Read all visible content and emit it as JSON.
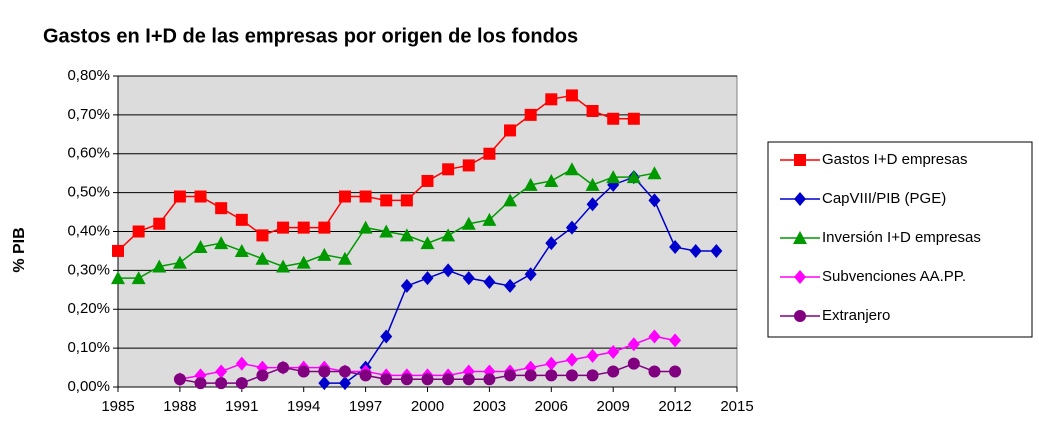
{
  "chart_data": {
    "type": "line",
    "title": "Gastos en I+D de las empresas por origen de los fondos",
    "ylabel": "% PIB",
    "x": [
      1985,
      1986,
      1987,
      1988,
      1989,
      1990,
      1991,
      1992,
      1993,
      1994,
      1995,
      1996,
      1997,
      1998,
      1999,
      2000,
      2001,
      2002,
      2003,
      2004,
      2005,
      2006,
      2007,
      2008,
      2009,
      2010,
      2011,
      2012,
      2013,
      2014
    ],
    "series": [
      {
        "name": "Gastos I+D empresas",
        "color": "#ff0000",
        "marker": "square",
        "values": [
          0.35,
          0.4,
          0.42,
          0.49,
          0.49,
          0.46,
          0.43,
          0.39,
          0.41,
          0.41,
          0.41,
          0.49,
          0.49,
          0.48,
          0.48,
          0.53,
          0.56,
          0.57,
          0.6,
          0.66,
          0.7,
          0.74,
          0.75,
          0.71,
          0.69,
          0.69,
          null,
          null,
          null,
          null
        ]
      },
      {
        "name": "CapVIII/PIB (PGE)",
        "color": "#0000cc",
        "marker": "diamond",
        "values": [
          null,
          null,
          null,
          null,
          null,
          null,
          null,
          null,
          null,
          null,
          0.01,
          0.01,
          0.05,
          0.13,
          0.26,
          0.28,
          0.3,
          0.28,
          0.27,
          0.26,
          0.29,
          0.37,
          0.41,
          0.47,
          0.52,
          0.54,
          0.48,
          0.36,
          0.35,
          0.35
        ]
      },
      {
        "name": "Inversión I+D empresas",
        "color": "#009900",
        "marker": "triangle",
        "values": [
          0.28,
          0.28,
          0.31,
          0.32,
          0.36,
          0.37,
          0.35,
          0.33,
          0.31,
          0.32,
          0.34,
          0.33,
          0.41,
          0.4,
          0.39,
          0.37,
          0.39,
          0.42,
          0.43,
          0.48,
          0.52,
          0.53,
          0.56,
          0.52,
          0.54,
          0.54,
          0.55,
          null,
          null,
          null
        ]
      },
      {
        "name": "Subvenciones AA.PP.",
        "color": "#ff00ff",
        "marker": "diamond",
        "values": [
          null,
          null,
          null,
          0.02,
          0.03,
          0.04,
          0.06,
          0.05,
          0.05,
          0.05,
          0.05,
          0.04,
          0.04,
          0.03,
          0.03,
          0.03,
          0.03,
          0.04,
          0.04,
          0.04,
          0.05,
          0.06,
          0.07,
          0.08,
          0.09,
          0.11,
          0.13,
          0.12,
          null,
          null
        ]
      },
      {
        "name": "Extranjero",
        "color": "#800080",
        "marker": "circle",
        "values": [
          null,
          null,
          null,
          0.02,
          0.01,
          0.01,
          0.01,
          0.03,
          0.05,
          0.04,
          0.04,
          0.04,
          0.03,
          0.02,
          0.02,
          0.02,
          0.02,
          0.02,
          0.02,
          0.03,
          0.03,
          0.03,
          0.03,
          0.03,
          0.04,
          0.06,
          0.04,
          0.04,
          null,
          null
        ]
      }
    ],
    "xlim": [
      1985,
      2015
    ],
    "xticks": [
      1985,
      1988,
      1991,
      1994,
      1997,
      2000,
      2003,
      2006,
      2009,
      2012,
      2015
    ],
    "ylim": [
      0,
      0.8
    ],
    "yticks": [
      {
        "value": 0,
        "label": "0,00%"
      },
      {
        "value": 0.1,
        "label": "0,10%"
      },
      {
        "value": 0.2,
        "label": "0,20%"
      },
      {
        "value": 0.3,
        "label": "0,30%"
      },
      {
        "value": 0.4,
        "label": "0,40%"
      },
      {
        "value": 0.5,
        "label": "0,50%"
      },
      {
        "value": 0.6,
        "label": "0,60%"
      },
      {
        "value": 0.7,
        "label": "0,70%"
      },
      {
        "value": 0.8,
        "label": "0,80%"
      }
    ],
    "grid": true,
    "legend": "right"
  }
}
